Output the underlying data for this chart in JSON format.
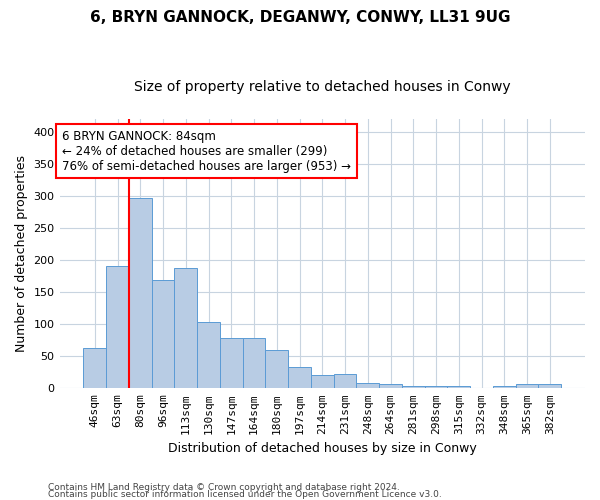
{
  "title1": "6, BRYN GANNOCK, DEGANWY, CONWY, LL31 9UG",
  "title2": "Size of property relative to detached houses in Conwy",
  "xlabel": "Distribution of detached houses by size in Conwy",
  "ylabel": "Number of detached properties",
  "categories": [
    "46sqm",
    "63sqm",
    "80sqm",
    "96sqm",
    "113sqm",
    "130sqm",
    "147sqm",
    "164sqm",
    "180sqm",
    "197sqm",
    "214sqm",
    "231sqm",
    "248sqm",
    "264sqm",
    "281sqm",
    "298sqm",
    "315sqm",
    "332sqm",
    "348sqm",
    "365sqm",
    "382sqm"
  ],
  "values": [
    63,
    190,
    297,
    169,
    188,
    104,
    78,
    78,
    60,
    33,
    20,
    23,
    9,
    7,
    4,
    3,
    3,
    0,
    3,
    7,
    7
  ],
  "bar_color": "#b8cce4",
  "bar_edge_color": "#5b9bd5",
  "annotation_line1": "6 BRYN GANNOCK: 84sqm",
  "annotation_line2": "← 24% of detached houses are smaller (299)",
  "annotation_line3": "76% of semi-detached houses are larger (953) →",
  "annotation_box_color": "white",
  "annotation_box_edge_color": "red",
  "redline_bar_index": 2,
  "ylim": [
    0,
    420
  ],
  "yticks": [
    0,
    50,
    100,
    150,
    200,
    250,
    300,
    350,
    400
  ],
  "footer1": "Contains HM Land Registry data © Crown copyright and database right 2024.",
  "footer2": "Contains public sector information licensed under the Open Government Licence v3.0.",
  "bg_color": "#ffffff",
  "grid_color": "#c8d4e0",
  "title_fontsize": 11,
  "subtitle_fontsize": 10,
  "tick_fontsize": 8,
  "xlabel_fontsize": 9,
  "ylabel_fontsize": 9
}
